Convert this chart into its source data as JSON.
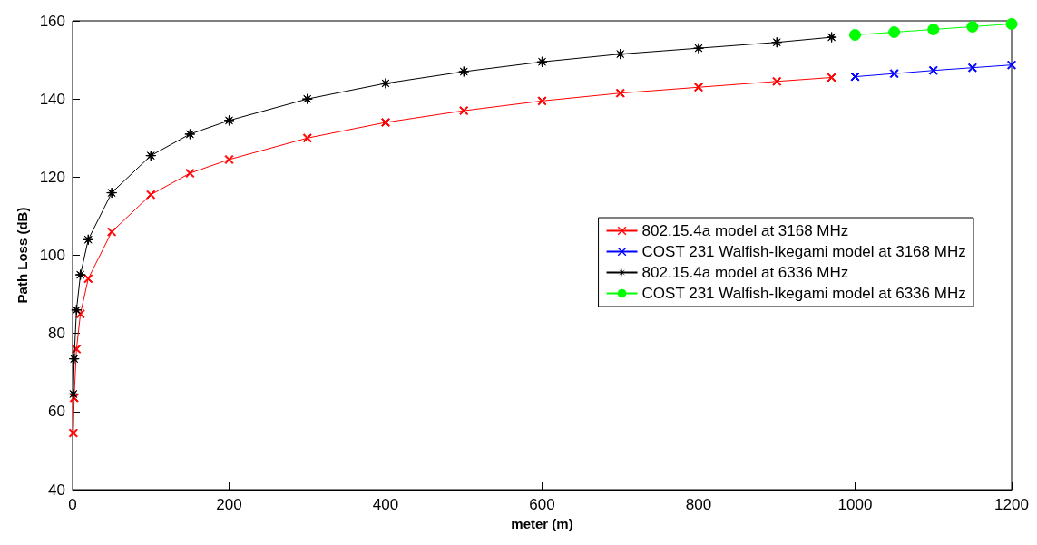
{
  "chart_data": {
    "type": "line",
    "xlabel": "meter (m)",
    "ylabel": "Path Loss (dB)",
    "xlim": [
      0,
      1200
    ],
    "xticks": [
      0,
      200,
      400,
      600,
      800,
      1000,
      1200
    ],
    "ylim": [
      40,
      160
    ],
    "yticks": [
      40,
      60,
      80,
      100,
      120,
      140,
      160
    ],
    "grid": false,
    "legend": "right",
    "series": [
      {
        "name": "802.15.4a model at 3168 MHz",
        "color": "#ff0000",
        "marker": "cross",
        "x": [
          1,
          2,
          5,
          10,
          20,
          50,
          100,
          150,
          200,
          300,
          400,
          500,
          600,
          700,
          800,
          900,
          970
        ],
        "values": [
          54.5,
          63.5,
          76,
          85,
          94,
          106,
          115.5,
          121,
          124.5,
          130,
          134,
          137,
          139.5,
          141.5,
          143,
          144.5,
          145.5
        ]
      },
      {
        "name": "COST 231 Walfish-Ikegami model at 3168 MHz",
        "color": "#0000ff",
        "marker": "cross",
        "x": [
          1000,
          1050,
          1100,
          1150,
          1200
        ],
        "values": [
          145.7,
          146.5,
          147.3,
          148,
          148.7
        ]
      },
      {
        "name": "802.15.4a model at 6336 MHz",
        "color": "#000000",
        "marker": "star",
        "x": [
          1,
          2,
          5,
          10,
          20,
          50,
          100,
          150,
          200,
          300,
          400,
          500,
          600,
          700,
          800,
          900,
          970
        ],
        "values": [
          64.5,
          73.5,
          86,
          95,
          104,
          116,
          125.5,
          131,
          134.5,
          140,
          144,
          147,
          149.5,
          151.5,
          153,
          154.5,
          155.8
        ]
      },
      {
        "name": "COST 231 Walfish-Ikegami model at 6336 MHz",
        "color": "#00ff00",
        "marker": "circle",
        "x": [
          1000,
          1050,
          1100,
          1150,
          1200
        ],
        "values": [
          156.4,
          157.1,
          157.8,
          158.5,
          159.2
        ]
      }
    ]
  }
}
